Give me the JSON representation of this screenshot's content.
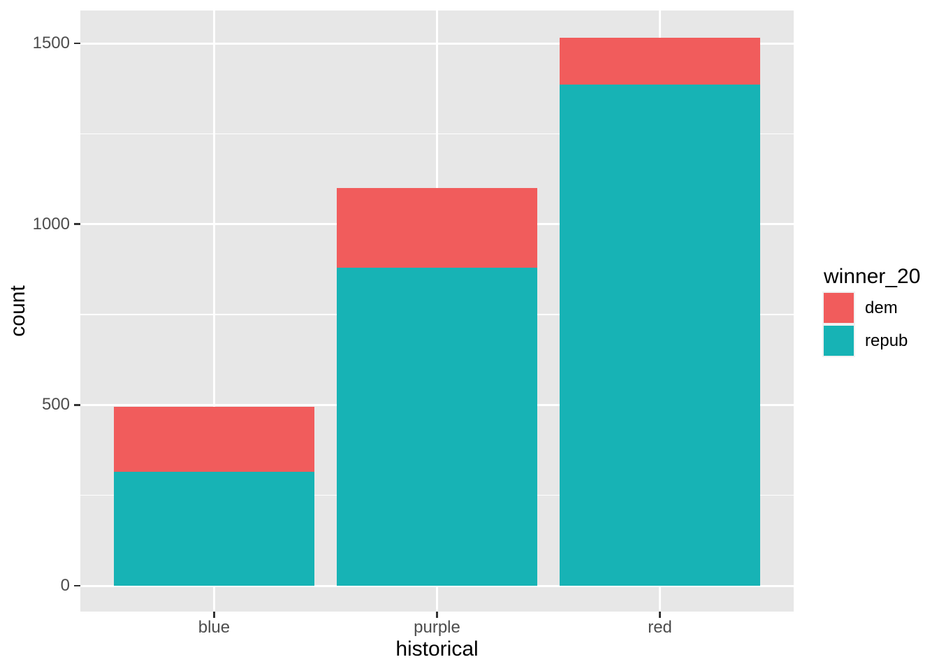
{
  "chart_data": {
    "type": "bar",
    "variant": "stacked",
    "title": "",
    "xlabel": "historical",
    "ylabel": "count",
    "categories": [
      "blue",
      "purple",
      "red"
    ],
    "series": [
      {
        "name": "dem",
        "color": "#F15C5C",
        "values": [
          180,
          220,
          130
        ]
      },
      {
        "name": "repub",
        "color": "#17B3B5",
        "values": [
          315,
          880,
          1385
        ]
      }
    ],
    "stack_bottom_to_top": [
      "repub",
      "dem"
    ],
    "stack_totals": [
      495,
      1100,
      1515
    ],
    "yticks": [
      0,
      500,
      1000,
      1500
    ],
    "yticks_minor": [
      250,
      750,
      1250
    ],
    "ylim": [
      -76,
      1591
    ],
    "bar_width_fraction": 0.9,
    "grid": "white major+minor horizontal, white major vertical, no minor vertical",
    "legend_position": "right",
    "legend": {
      "title": "winner_20"
    },
    "colors": {
      "panel_background": "#E7E7E7",
      "gridline": "#FFFFFF",
      "tick_text": "#4D4D4D",
      "axis_title_text": "#000000",
      "tick_mark": "#333333"
    }
  }
}
